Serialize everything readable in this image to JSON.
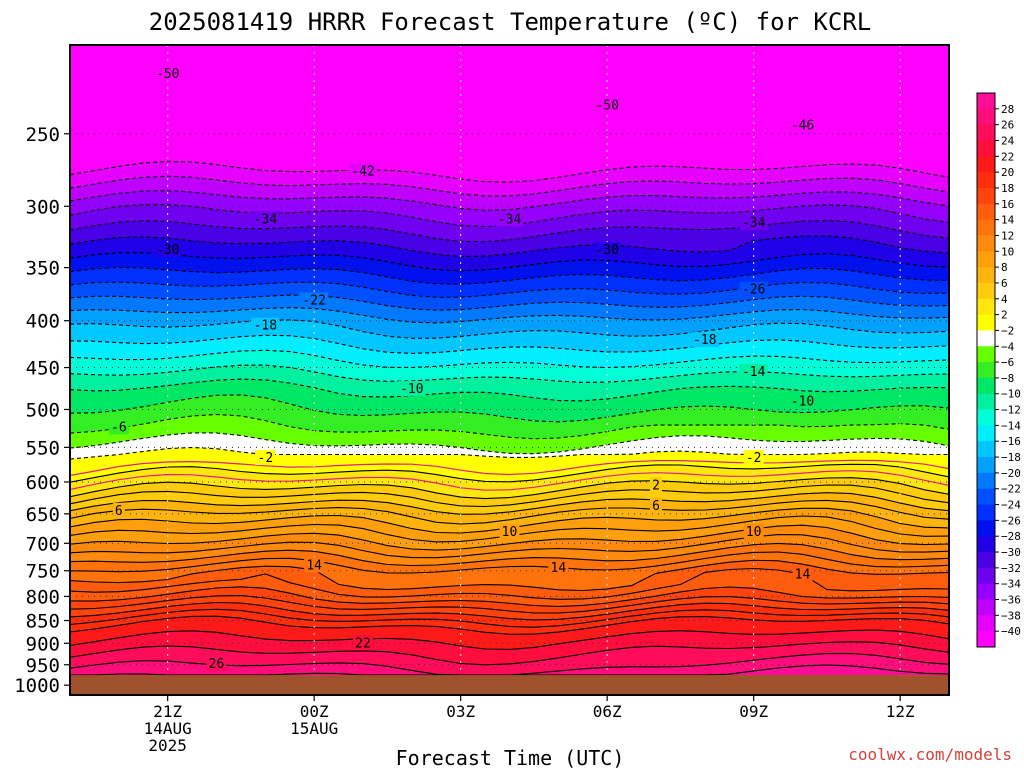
{
  "chart_data": {
    "type": "heatmap",
    "title": "2025081419 HRRR Forecast Temperature (ºC) for KCRL",
    "xlabel": "Forecast Time (UTC)",
    "ylabel": "",
    "credit": "coolwx.com/models",
    "x_ticks": [
      {
        "lines": [
          "21Z",
          "14AUG",
          "2025"
        ]
      },
      {
        "lines": [
          "00Z",
          "15AUG"
        ]
      },
      {
        "lines": [
          "03Z"
        ]
      },
      {
        "lines": [
          "06Z"
        ]
      },
      {
        "lines": [
          "09Z"
        ]
      },
      {
        "lines": [
          "12Z"
        ]
      }
    ],
    "x_tick_hours": [
      2,
      5,
      8,
      11,
      14,
      17
    ],
    "x_range_hours": [
      0,
      18
    ],
    "y_axis": {
      "name": "pressure",
      "unit": "hPa",
      "scale": "log",
      "reversed": true,
      "range": [
        200,
        1025
      ]
    },
    "y_ticks": [
      250,
      300,
      350,
      400,
      450,
      500,
      550,
      600,
      650,
      700,
      750,
      800,
      850,
      900,
      950,
      1000
    ],
    "ground_below_hPa": 975,
    "colorbar": {
      "levels": [
        28,
        26,
        24,
        22,
        20,
        18,
        16,
        14,
        12,
        10,
        8,
        6,
        4,
        2,
        -2,
        -4,
        -6,
        -8,
        -10,
        -12,
        -14,
        -16,
        -18,
        -20,
        -22,
        -24,
        -26,
        -28,
        -30,
        -32,
        -34,
        -36,
        -38,
        -40
      ],
      "colors": [
        "#ff0d96",
        "#ff0d7a",
        "#ff0d5c",
        "#ff0d3c",
        "#ff1a1a",
        "#ff2e0d",
        "#ff450d",
        "#ff5c0d",
        "#ff730d",
        "#ff8a0d",
        "#ff9f0d",
        "#ffb40d",
        "#ffcc0d",
        "#ffe60d",
        "#ffff00",
        "#ffffff",
        "#66ff00",
        "#33ee22",
        "#00e665",
        "#00f0a0",
        "#00ffd6",
        "#00eeff",
        "#00c8ff",
        "#00a0ff",
        "#0078ff",
        "#0050ff",
        "#0030ff",
        "#0010f0",
        "#2000e6",
        "#4a00e6",
        "#7000f0",
        "#9600ff",
        "#c000ff",
        "#e600ff",
        "#ff00ff"
      ]
    },
    "profile_start": [
      {
        "p": 210,
        "t": -52
      },
      {
        "p": 250,
        "t": -45
      },
      {
        "p": 275,
        "t": -40
      },
      {
        "p": 300,
        "t": -35
      },
      {
        "p": 325,
        "t": -31
      },
      {
        "p": 350,
        "t": -27
      },
      {
        "p": 375,
        "t": -23
      },
      {
        "p": 400,
        "t": -19
      },
      {
        "p": 425,
        "t": -16
      },
      {
        "p": 450,
        "t": -13
      },
      {
        "p": 475,
        "t": -10
      },
      {
        "p": 500,
        "t": -8
      },
      {
        "p": 525,
        "t": -6
      },
      {
        "p": 550,
        "t": -3.5
      },
      {
        "p": 560,
        "t": -2.5
      },
      {
        "p": 575,
        "t": 0
      },
      {
        "p": 600,
        "t": 2.3
      },
      {
        "p": 650,
        "t": 6.2
      },
      {
        "p": 700,
        "t": 9.3
      },
      {
        "p": 750,
        "t": 12.6
      },
      {
        "p": 800,
        "t": 15.8
      },
      {
        "p": 850,
        "t": 19.6
      },
      {
        "p": 900,
        "t": 23
      },
      {
        "p": 950,
        "t": 26.5
      },
      {
        "p": 975,
        "t": 28.5
      }
    ],
    "contour_labels": [
      {
        "value": "-50",
        "hour": 2.0,
        "p": 215
      },
      {
        "value": "-50",
        "hour": 11.0,
        "p": 233
      },
      {
        "value": "-46",
        "hour": 15.0,
        "p": 245
      },
      {
        "value": "-42",
        "hour": 6.0,
        "p": 275
      },
      {
        "value": "-34",
        "hour": 4.0,
        "p": 310
      },
      {
        "value": "-34",
        "hour": 9.0,
        "p": 310
      },
      {
        "value": "-34",
        "hour": 14.0,
        "p": 313
      },
      {
        "value": "-30",
        "hour": 2.0,
        "p": 335
      },
      {
        "value": "-30",
        "hour": 11.0,
        "p": 335
      },
      {
        "value": "-26",
        "hour": 14.0,
        "p": 370
      },
      {
        "value": "-22",
        "hour": 5.0,
        "p": 380
      },
      {
        "value": "-18",
        "hour": 4.0,
        "p": 405
      },
      {
        "value": "-18",
        "hour": 13.0,
        "p": 420
      },
      {
        "value": "-14",
        "hour": 14.0,
        "p": 455
      },
      {
        "value": "-10",
        "hour": 7.0,
        "p": 475
      },
      {
        "value": "-10",
        "hour": 15.0,
        "p": 490
      },
      {
        "value": "-6",
        "hour": 1.0,
        "p": 523
      },
      {
        "value": "-2",
        "hour": 4.0,
        "p": 565
      },
      {
        "value": "-2",
        "hour": 14.0,
        "p": 565
      },
      {
        "value": "2",
        "hour": 12.0,
        "p": 605
      },
      {
        "value": "6",
        "hour": 1.0,
        "p": 645
      },
      {
        "value": "6",
        "hour": 12.0,
        "p": 637
      },
      {
        "value": "10",
        "hour": 9.0,
        "p": 680
      },
      {
        "value": "10",
        "hour": 14.0,
        "p": 680
      },
      {
        "value": "14",
        "hour": 5.0,
        "p": 740
      },
      {
        "value": "14",
        "hour": 10.0,
        "p": 745
      },
      {
        "value": "14",
        "hour": 15.0,
        "p": 757
      },
      {
        "value": "22",
        "hour": 6.0,
        "p": 900
      },
      {
        "value": "26",
        "hour": 3.0,
        "p": 948
      }
    ]
  }
}
